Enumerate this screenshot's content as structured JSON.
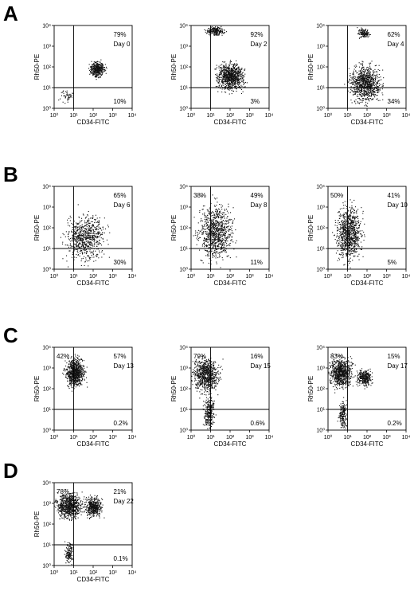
{
  "panels": [
    {
      "letter": "A"
    },
    {
      "letter": "B"
    },
    {
      "letter": "C"
    },
    {
      "letter": "D"
    }
  ],
  "axis": {
    "xlabel": "CD34-FITC",
    "ylabel": "Rh50-PE",
    "xticks": [
      "10⁰",
      "10¹",
      "10²",
      "10³",
      "10⁴"
    ],
    "yticks": [
      "10⁰",
      "10¹",
      "10²",
      "10³",
      "10⁴"
    ],
    "scale": "log",
    "range": [
      1,
      10000
    ],
    "gate": {
      "x": 10,
      "y": 10
    }
  },
  "chart_data": [
    {
      "type": "scatter",
      "panel": "A",
      "day": "Day 0",
      "ur": "79%",
      "lr": "10%",
      "ul": "",
      "xlabel": "CD34-FITC",
      "ylabel": "Rh50-PE",
      "xlim": [
        1,
        10000
      ],
      "ylim": [
        1,
        10000
      ],
      "log": true,
      "clusters": [
        {
          "x": [
            1.8,
            2.6
          ],
          "y": [
            1.5,
            2.3
          ],
          "density": 0.45
        },
        {
          "x": [
            0.2,
            1.0
          ],
          "y": [
            0.2,
            1.0
          ],
          "density": 0.05
        }
      ]
    },
    {
      "type": "scatter",
      "panel": "A",
      "day": "Day 2",
      "ur": "92%",
      "lr": "3%",
      "ul": "",
      "xlabel": "CD34-FITC",
      "ylabel": "Rh50-PE",
      "xlim": [
        1,
        10000
      ],
      "ylim": [
        1,
        10000
      ],
      "log": true,
      "clusters": [
        {
          "x": [
            1.2,
            2.8
          ],
          "y": [
            0.8,
            2.3
          ],
          "density": 1.0
        },
        {
          "x": [
            0.7,
            1.8
          ],
          "y": [
            3.5,
            4.0
          ],
          "density": 0.25
        }
      ]
    },
    {
      "type": "scatter",
      "panel": "A",
      "day": "Day 4",
      "ur": "62%",
      "lr": "34%",
      "ul": "",
      "xlabel": "CD34-FITC",
      "ylabel": "Rh50-PE",
      "xlim": [
        1,
        10000
      ],
      "ylim": [
        1,
        10000
      ],
      "log": true,
      "clusters": [
        {
          "x": [
            1.0,
            2.8
          ],
          "y": [
            0.2,
            2.2
          ],
          "density": 1.0
        },
        {
          "x": [
            1.5,
            2.2
          ],
          "y": [
            3.4,
            3.9
          ],
          "density": 0.15
        }
      ]
    },
    {
      "type": "scatter",
      "panel": "B",
      "day": "Day 6",
      "ur": "65%",
      "lr": "30%",
      "ul": "",
      "xlabel": "CD34-FITC",
      "ylabel": "Rh50-PE",
      "xlim": [
        1,
        10000
      ],
      "ylim": [
        1,
        10000
      ],
      "log": true,
      "clusters": [
        {
          "x": [
            0.4,
            2.8
          ],
          "y": [
            0.3,
            2.8
          ],
          "density": 0.8
        }
      ]
    },
    {
      "type": "scatter",
      "panel": "B",
      "day": "Day 8",
      "ur": "49%",
      "lr": "11%",
      "ul": "38%",
      "xlabel": "CD34-FITC",
      "ylabel": "Rh50-PE",
      "xlim": [
        1,
        10000
      ],
      "ylim": [
        1,
        10000
      ],
      "log": true,
      "clusters": [
        {
          "x": [
            0.3,
            2.2
          ],
          "y": [
            0.3,
            3.3
          ],
          "density": 1.0
        }
      ]
    },
    {
      "type": "scatter",
      "panel": "B",
      "day": "Day 10",
      "ur": "41%",
      "lr": "5%",
      "ul": "50%",
      "xlabel": "CD34-FITC",
      "ylabel": "Rh50-PE",
      "xlim": [
        1,
        10000
      ],
      "ylim": [
        1,
        10000
      ],
      "log": true,
      "clusters": [
        {
          "x": [
            0.3,
            1.8
          ],
          "y": [
            0.3,
            3.3
          ],
          "density": 1.0
        }
      ]
    },
    {
      "type": "scatter",
      "panel": "C",
      "day": "Day 13",
      "ur": "57%",
      "lr": "0.2%",
      "ul": "42%",
      "xlabel": "CD34-FITC",
      "ylabel": "Rh50-PE",
      "xlim": [
        1,
        10000
      ],
      "ylim": [
        1,
        10000
      ],
      "log": true,
      "clusters": [
        {
          "x": [
            0.5,
            1.6
          ],
          "y": [
            2.0,
            3.6
          ],
          "density": 0.9
        }
      ]
    },
    {
      "type": "scatter",
      "panel": "C",
      "day": "Day 15",
      "ur": "16%",
      "lr": "0.6%",
      "ul": "79%",
      "xlabel": "CD34-FITC",
      "ylabel": "Rh50-PE",
      "xlim": [
        1,
        10000
      ],
      "ylim": [
        1,
        10000
      ],
      "log": true,
      "clusters": [
        {
          "x": [
            0.0,
            1.5
          ],
          "y": [
            1.8,
            3.6
          ],
          "density": 0.9
        },
        {
          "x": [
            0.6,
            1.2
          ],
          "y": [
            0.0,
            1.8
          ],
          "density": 0.3
        }
      ]
    },
    {
      "type": "scatter",
      "panel": "C",
      "day": "Day 17",
      "ur": "15%",
      "lr": "0.2%",
      "ul": "83%",
      "xlabel": "CD34-FITC",
      "ylabel": "Rh50-PE",
      "xlim": [
        1,
        10000
      ],
      "ylim": [
        1,
        10000
      ],
      "log": true,
      "clusters": [
        {
          "x": [
            0.0,
            1.3
          ],
          "y": [
            2.0,
            3.6
          ],
          "density": 0.9
        },
        {
          "x": [
            1.4,
            2.3
          ],
          "y": [
            2.1,
            3.0
          ],
          "density": 0.35
        },
        {
          "x": [
            0.5,
            1.0
          ],
          "y": [
            0.0,
            1.5
          ],
          "density": 0.2
        }
      ]
    },
    {
      "type": "scatter",
      "panel": "D",
      "day": "Day 22",
      "ur": "21%",
      "lr": "0.1%",
      "ul": "78%",
      "xlabel": "CD34-FITC",
      "ylabel": "Rh50-PE",
      "xlim": [
        1,
        10000
      ],
      "ylim": [
        1,
        10000
      ],
      "log": true,
      "clusters": [
        {
          "x": [
            0.0,
            1.5
          ],
          "y": [
            2.2,
            3.6
          ],
          "density": 0.9
        },
        {
          "x": [
            1.5,
            2.5
          ],
          "y": [
            2.3,
            3.4
          ],
          "density": 0.5
        },
        {
          "x": [
            0.5,
            1.0
          ],
          "y": [
            0.0,
            1.2
          ],
          "density": 0.15
        }
      ]
    }
  ]
}
